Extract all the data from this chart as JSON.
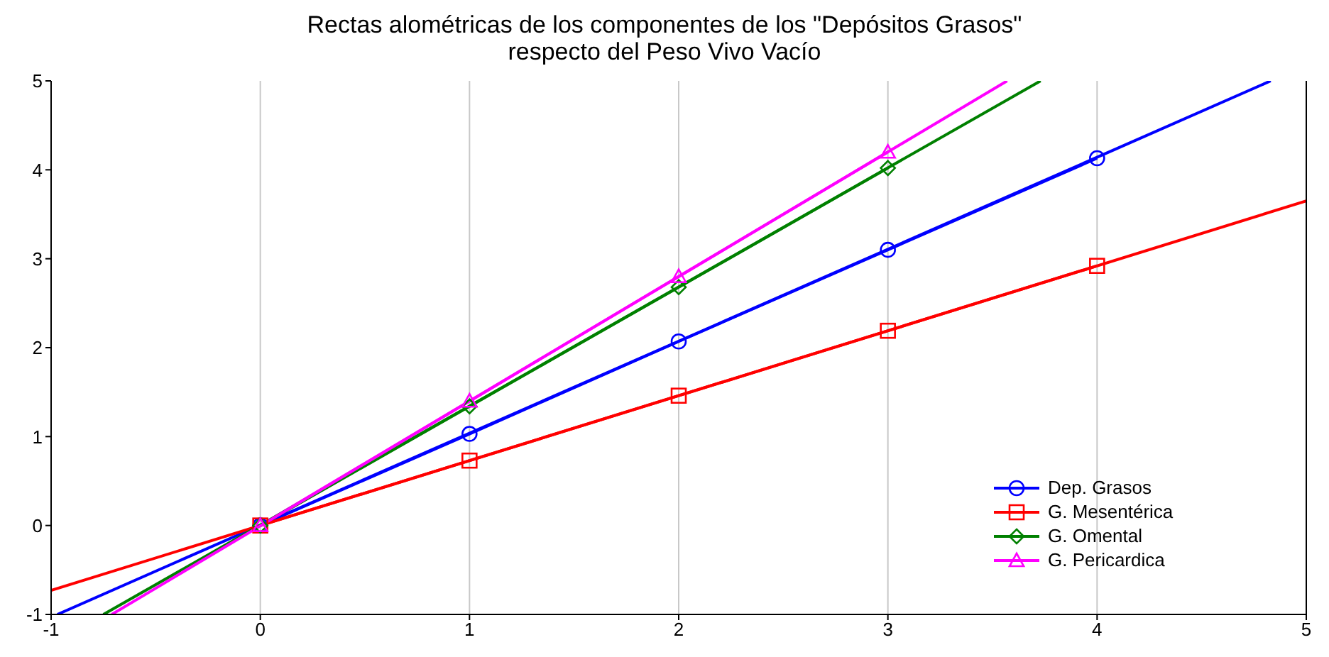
{
  "chart_data": {
    "type": "line",
    "title": "Rectas alométricas de los componentes de los \"Depósitos Grasos\"\nrespecto del Peso Vivo Vacío",
    "xlim": [
      -1,
      5
    ],
    "xticks": [
      -1,
      0,
      1,
      2,
      3,
      4,
      5
    ],
    "ylim": [
      -1,
      5
    ],
    "yticks": [
      -1,
      0,
      1,
      2,
      3,
      4,
      5
    ],
    "grid": "x",
    "legend": "right",
    "series": [
      {
        "name": "Dep. Grasos",
        "color": "#0000ff",
        "marker": "circle",
        "x": [
          0,
          1,
          2,
          3,
          4
        ],
        "values": [
          0,
          1.03,
          2.07,
          3.1,
          4.13
        ]
      },
      {
        "name": "G. Mesentérica",
        "color": "#ff0000",
        "marker": "square",
        "x": [
          0,
          1,
          2,
          3,
          4
        ],
        "values": [
          0,
          0.73,
          1.46,
          2.19,
          2.92
        ]
      },
      {
        "name": "G. Omental",
        "color": "#008000",
        "marker": "diamond",
        "x": [
          0,
          1,
          2,
          3
        ],
        "values": [
          0,
          1.34,
          2.68,
          4.02
        ]
      },
      {
        "name": "G. Pericardica",
        "color": "#ff00ff",
        "marker": "triangle",
        "x": [
          0,
          1,
          2,
          3
        ],
        "values": [
          0,
          1.4,
          2.8,
          4.2
        ]
      },
      {
        "color": "#0000ff",
        "marker": "none",
        "x": [
          -0.97,
          4.83
        ],
        "values": [
          -1,
          5
        ]
      },
      {
        "color": "#ff0000",
        "marker": "none",
        "x": [
          -1,
          5
        ],
        "values": [
          -0.73,
          3.65
        ]
      },
      {
        "color": "#008000",
        "marker": "none",
        "x": [
          -0.75,
          3.73
        ],
        "values": [
          -1,
          5
        ]
      },
      {
        "color": "#ff00ff",
        "marker": "none",
        "x": [
          -0.71,
          3.57
        ],
        "values": [
          -1,
          5
        ]
      }
    ]
  }
}
